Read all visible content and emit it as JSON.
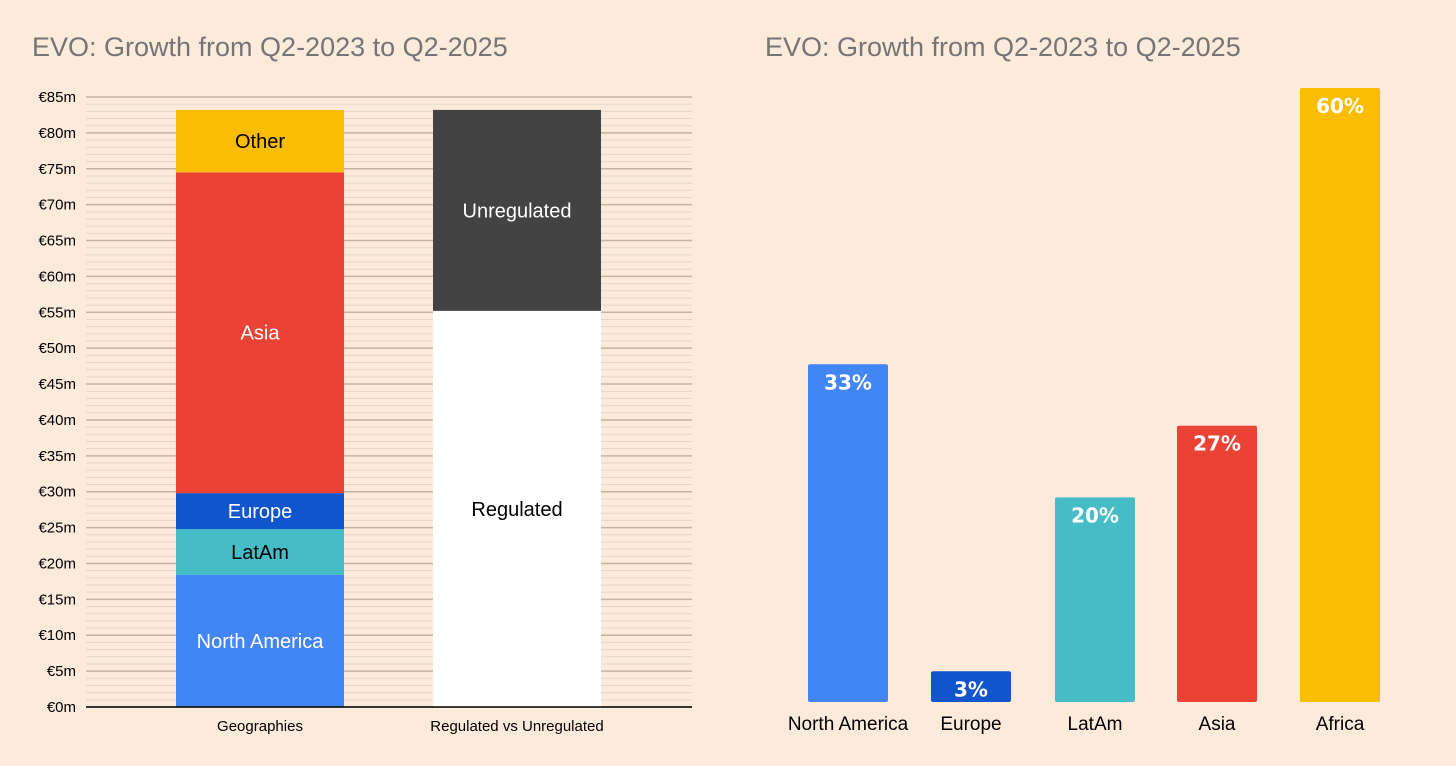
{
  "chart_data": [
    {
      "type": "bar",
      "stacked": true,
      "title": "EVO: Growth from Q2-2023 to Q2-2025",
      "categories": [
        "Geographies",
        "Regulated vs Unregulated"
      ],
      "ylim": [
        0,
        85
      ],
      "yticks": [
        "€0m",
        "€5m",
        "€10m",
        "€15m",
        "€20m",
        "€25m",
        "€30m",
        "€35m",
        "€40m",
        "€45m",
        "€50m",
        "€55m",
        "€60m",
        "€65m",
        "€70m",
        "€75m",
        "€80m",
        "€85m"
      ],
      "grid": true,
      "stacks": [
        [
          {
            "name": "North America",
            "value": 18.4,
            "color": "#4285f4",
            "text_color": "#ffffff"
          },
          {
            "name": "LatAm",
            "value": 6.4,
            "color": "#46bdc6",
            "text_color": "#000000"
          },
          {
            "name": "Europe",
            "value": 5.0,
            "color": "#1155cc",
            "text_color": "#ffffff"
          },
          {
            "name": "Asia",
            "value": 44.7,
            "color": "#ea4335",
            "text_color": "#ffffff"
          },
          {
            "name": "Other",
            "value": 8.7,
            "color": "#fbbc04",
            "text_color": "#000000"
          }
        ],
        [
          {
            "name": "Regulated",
            "value": 55.2,
            "color": "#ffffff",
            "text_color": "#000000"
          },
          {
            "name": "Unregulated",
            "value": 28.0,
            "color": "#434343",
            "text_color": "#ffffff"
          }
        ]
      ]
    },
    {
      "type": "bar",
      "title": "EVO: Growth from Q2-2023 to Q2-2025",
      "categories": [
        "North America",
        "Europe",
        "LatAm",
        "Asia",
        "Africa"
      ],
      "values": [
        33,
        3,
        20,
        27,
        60
      ],
      "labels": [
        "33%",
        "3%",
        "20%",
        "27%",
        "60%"
      ],
      "colors": [
        "#4285f4",
        "#1155cc",
        "#46bdc6",
        "#ea4335",
        "#fbbc04"
      ],
      "ylim": [
        0,
        60
      ],
      "grid": false
    }
  ]
}
